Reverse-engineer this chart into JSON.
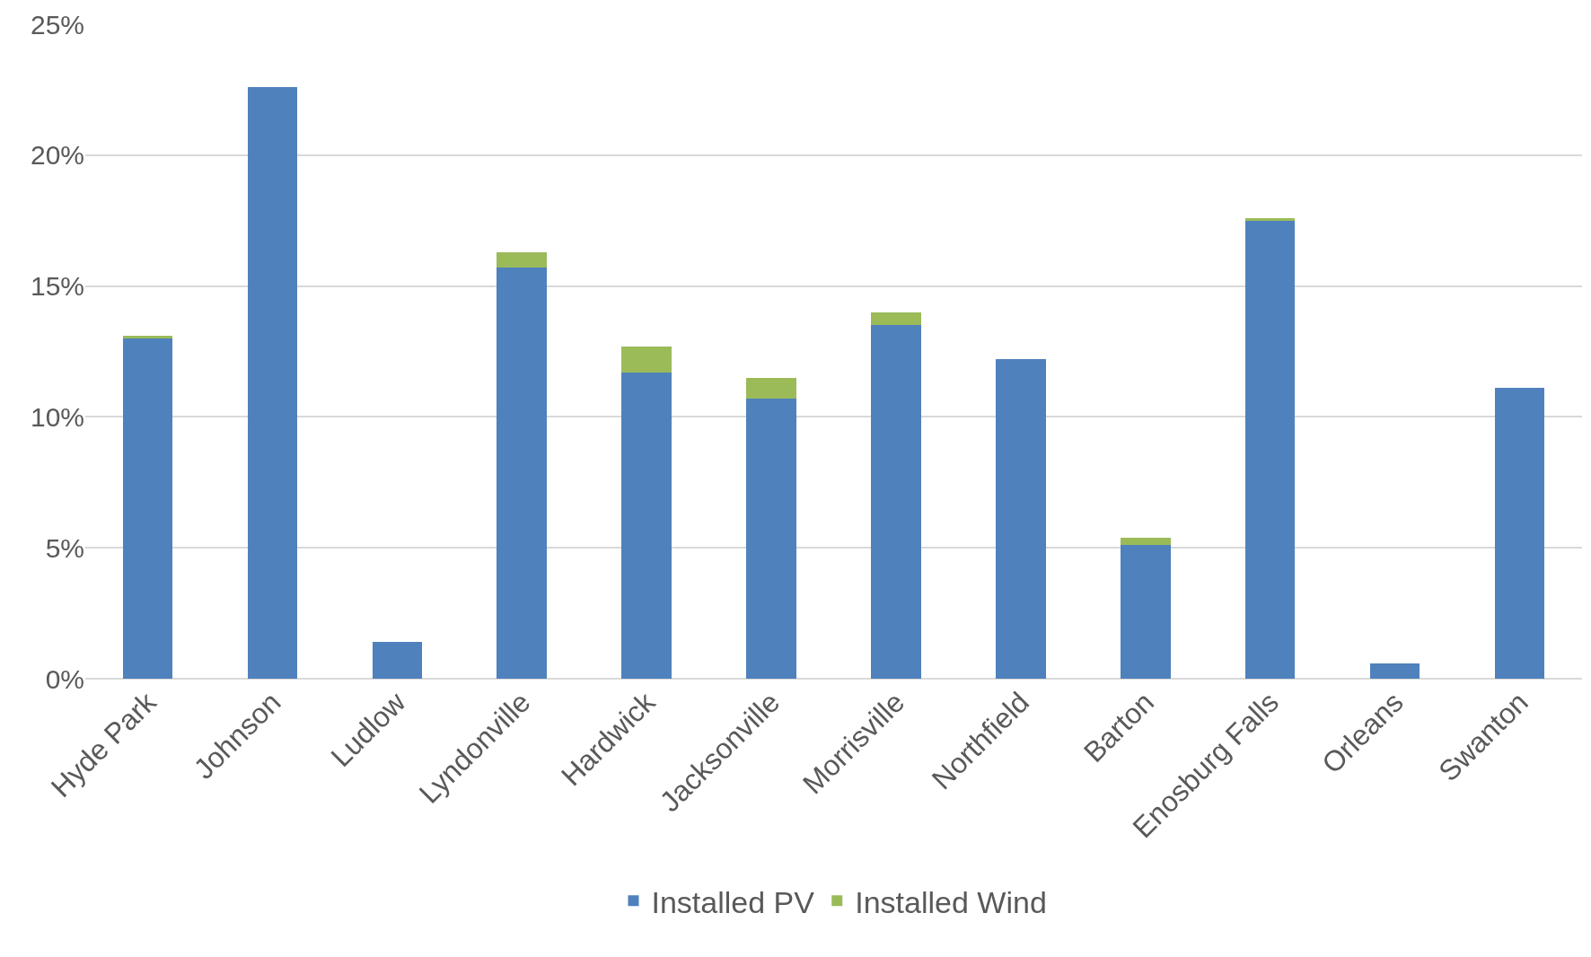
{
  "chart_data": {
    "type": "bar",
    "stacked": true,
    "categories": [
      "Hyde Park",
      "Johnson",
      "Ludlow",
      "Lyndonville",
      "Hardwick",
      "Jacksonville",
      "Morrisville",
      "Northfield",
      "Barton",
      "Enosburg Falls",
      "Orleans",
      "Swanton"
    ],
    "series": [
      {
        "name": "Installed PV",
        "color": "#4f81bd",
        "values": [
          13.0,
          22.6,
          1.4,
          15.7,
          11.7,
          10.7,
          13.5,
          12.2,
          5.1,
          17.5,
          0.6,
          11.1
        ]
      },
      {
        "name": "Installed Wind",
        "color": "#9bbb59",
        "values": [
          0.1,
          0,
          0,
          0.6,
          1.0,
          0.8,
          0.5,
          0,
          0.3,
          0.1,
          0,
          0
        ]
      }
    ],
    "ylim": [
      0,
      25
    ],
    "yticks": [
      {
        "value": 0,
        "label": "0%"
      },
      {
        "value": 5,
        "label": "5%"
      },
      {
        "value": 10,
        "label": "10%"
      },
      {
        "value": 15,
        "label": "15%"
      },
      {
        "value": 20,
        "label": "20%"
      },
      {
        "value": 25,
        "label": "25%"
      }
    ],
    "grid": "y",
    "legend": "bottom"
  }
}
